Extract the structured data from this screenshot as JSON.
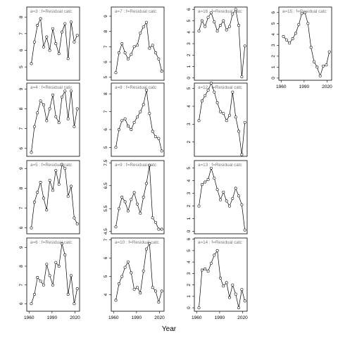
{
  "figure": {
    "xlabel": "Year"
  },
  "chart_data": [
    {
      "type": "line",
      "label": "a=3  :  f=Residual catc",
      "x": [
        1963,
        1967,
        1971,
        1975,
        1979,
        1983,
        1987,
        1991,
        1995,
        1999,
        2003,
        2007,
        2011,
        2015,
        2019,
        2023
      ],
      "values": [
        5.2,
        6.5,
        7.5,
        7.9,
        6.2,
        6.8,
        6.0,
        7.3,
        6.4,
        5.8,
        7.1,
        7.6,
        5.5,
        7.7,
        6.5,
        6.9
      ],
      "xlim": [
        1957,
        2026
      ],
      "ylim": [
        4.2,
        8.6
      ],
      "yticks": [
        5,
        6,
        7,
        8
      ],
      "xticks_shown": false
    },
    {
      "type": "line",
      "label": "a=7  :  f=Residual catc",
      "x": [
        1963,
        1967,
        1971,
        1975,
        1979,
        1983,
        1987,
        1991,
        1995,
        1999,
        2003,
        2007,
        2011,
        2015,
        2019,
        2023
      ],
      "values": [
        5.3,
        6.6,
        7.2,
        6.6,
        6.2,
        6.5,
        7.0,
        7.1,
        7.9,
        8.3,
        8.6,
        6.9,
        7.1,
        6.6,
        6.2,
        5.4
      ],
      "xlim": [
        1957,
        2026
      ],
      "ylim": [
        4.8,
        9.6
      ],
      "yticks": [
        5,
        6,
        7,
        8,
        9
      ],
      "xticks_shown": false
    },
    {
      "type": "line",
      "label": "a=16  :  f=Residual catc",
      "x": [
        1963,
        1967,
        1971,
        1975,
        1979,
        1983,
        1987,
        1991,
        1995,
        1999,
        2003,
        2007,
        2011,
        2015,
        2019,
        2023
      ],
      "values": [
        4.1,
        5.0,
        4.5,
        5.3,
        5.7,
        4.9,
        4.1,
        4.6,
        5.0,
        4.2,
        4.5,
        5.6,
        6.0,
        4.6,
        0.1,
        2.8
      ],
      "xlim": [
        1957,
        2026
      ],
      "ylim": [
        -0.2,
        6.2
      ],
      "yticks": [
        0,
        1,
        2,
        3,
        4,
        5,
        6
      ],
      "xticks_shown": false
    },
    {
      "type": "line",
      "label": "a=15  :  f=Residual catc",
      "x": [
        1963,
        1967,
        1971,
        1975,
        1979,
        1983,
        1987,
        1991,
        1995,
        1999,
        2003,
        2007,
        2011,
        2015,
        2019,
        2023
      ],
      "values": [
        3.8,
        3.5,
        3.2,
        3.6,
        4.1,
        4.9,
        5.9,
        6.0,
        5.0,
        2.8,
        1.5,
        1.0,
        0.2,
        1.1,
        1.2,
        2.4
      ],
      "xlim": [
        1957,
        2026
      ],
      "ylim": [
        -0.2,
        6.5
      ],
      "yticks": [
        0,
        1,
        2,
        3,
        4,
        5,
        6
      ],
      "xticks": [
        1960,
        1990,
        2020
      ],
      "xticks_shown": true
    },
    {
      "type": "line",
      "label": "a=4  :  f=Residual catc",
      "x": [
        1963,
        1967,
        1971,
        1975,
        1979,
        1983,
        1987,
        1991,
        1995,
        1999,
        2003,
        2007,
        2011,
        2015,
        2019,
        2023
      ],
      "values": [
        5.8,
        7.1,
        7.8,
        8.4,
        8.2,
        7.4,
        8.0,
        8.7,
        7.6,
        7.3,
        8.6,
        8.9,
        7.5,
        8.9,
        7.1,
        8.0
      ],
      "xlim": [
        1957,
        2026
      ],
      "ylim": [
        5.6,
        9.3
      ],
      "yticks": [
        6.0,
        7.0,
        8.0,
        9.0
      ],
      "xticks_shown": false
    },
    {
      "type": "line",
      "label": "a=8  :  f=Residual catc",
      "x": [
        1963,
        1967,
        1971,
        1975,
        1979,
        1983,
        1987,
        1991,
        1995,
        1999,
        2003,
        2007,
        2011,
        2015,
        2019,
        2023
      ],
      "values": [
        5.0,
        6.0,
        6.5,
        6.6,
        6.2,
        6.0,
        6.4,
        6.7,
        7.0,
        7.4,
        8.2,
        6.9,
        5.9,
        5.6,
        5.5,
        4.8
      ],
      "xlim": [
        1957,
        2026
      ],
      "ylim": [
        4.5,
        8.6
      ],
      "yticks": [
        5,
        6,
        7,
        8
      ],
      "xticks_shown": false
    },
    {
      "type": "line",
      "label": "a=12  :  f=Residual catc",
      "x": [
        1963,
        1967,
        1971,
        1975,
        1979,
        1983,
        1987,
        1991,
        1995,
        1999,
        2003,
        2007,
        2011,
        2015,
        2019,
        2023
      ],
      "values": [
        3.2,
        4.3,
        4.6,
        4.9,
        5.3,
        4.8,
        4.2,
        3.7,
        3.6,
        3.2,
        3.5,
        4.8,
        3.4,
        2.6,
        1.3,
        3.1
      ],
      "xlim": [
        1957,
        2026
      ],
      "ylim": [
        1.2,
        5.3
      ],
      "yticks": [
        2,
        3,
        4,
        5
      ],
      "xticks_shown": false
    },
    {
      "type": "line",
      "label": "a=5  :  f=Residual catc",
      "x": [
        1963,
        1967,
        1971,
        1975,
        1979,
        1983,
        1987,
        1991,
        1995,
        1999,
        2003,
        2007,
        2011,
        2015,
        2019,
        2023
      ],
      "values": [
        6.0,
        7.3,
        7.8,
        8.3,
        7.5,
        6.9,
        8.4,
        7.9,
        8.9,
        8.2,
        9.2,
        9.0,
        7.6,
        8.1,
        6.5,
        6.2
      ],
      "xlim": [
        1957,
        2026
      ],
      "ylim": [
        5.7,
        9.4
      ],
      "yticks": [
        6.0,
        7.0,
        8.0,
        9.0
      ],
      "xticks_shown": false
    },
    {
      "type": "line",
      "label": "a=9  :  f=Residual catc",
      "x": [
        1963,
        1967,
        1971,
        1975,
        1979,
        1983,
        1987,
        1991,
        1995,
        1999,
        2003,
        2007,
        2011,
        2015,
        2019,
        2023
      ],
      "values": [
        4.7,
        5.5,
        6.0,
        5.8,
        5.4,
        5.9,
        6.2,
        5.7,
        5.3,
        6.0,
        6.6,
        7.4,
        5.1,
        4.9,
        4.6,
        4.6
      ],
      "xlim": [
        1957,
        2026
      ],
      "ylim": [
        4.4,
        7.6
      ],
      "yticks": [
        4.5,
        5.5,
        6.5,
        7.5
      ],
      "xticks_shown": false
    },
    {
      "type": "line",
      "label": "a=13  :  f=Residual catc",
      "x": [
        1963,
        1967,
        1971,
        1975,
        1979,
        1983,
        1987,
        1991,
        1995,
        1999,
        2003,
        2007,
        2011,
        2015,
        2019,
        2023
      ],
      "values": [
        2.0,
        3.7,
        3.9,
        4.1,
        5.0,
        4.2,
        3.3,
        2.5,
        3.1,
        2.4,
        2.0,
        2.6,
        3.4,
        2.8,
        2.1,
        0.1
      ],
      "xlim": [
        1957,
        2026
      ],
      "ylim": [
        -0.2,
        5.6
      ],
      "yticks": [
        0,
        1,
        2,
        3,
        4,
        5
      ],
      "xticks_shown": false
    },
    {
      "type": "line",
      "label": "a=6  :  f=Residual catc",
      "x": [
        1963,
        1967,
        1971,
        1975,
        1979,
        1983,
        1987,
        1991,
        1995,
        1999,
        2003,
        2007,
        2011,
        2015,
        2019,
        2023
      ],
      "values": [
        6.0,
        6.5,
        7.4,
        7.2,
        7.0,
        8.1,
        7.5,
        7.0,
        8.2,
        8.0,
        9.2,
        8.6,
        6.5,
        7.5,
        6.0,
        6.8
      ],
      "xlim": [
        1957,
        2026
      ],
      "ylim": [
        5.6,
        9.5
      ],
      "yticks": [
        6,
        7,
        8,
        9
      ],
      "xticks": [
        1960,
        1990,
        2020
      ],
      "xticks_shown": true
    },
    {
      "type": "line",
      "label": "a=10  :  f=Residual catc",
      "x": [
        1963,
        1967,
        1971,
        1975,
        1979,
        1983,
        1987,
        1991,
        1995,
        1999,
        2003,
        2007,
        2011,
        2015,
        2019,
        2023
      ],
      "values": [
        3.7,
        4.6,
        5.0,
        5.5,
        5.8,
        5.2,
        4.3,
        4.4,
        4.1,
        5.3,
        6.5,
        6.8,
        4.4,
        4.2,
        3.6,
        4.2
      ],
      "xlim": [
        1957,
        2026
      ],
      "ylim": [
        3.1,
        7.1
      ],
      "yticks": [
        4,
        5,
        6,
        7
      ],
      "xticks": [
        1960,
        1990,
        2020
      ],
      "xticks_shown": true
    },
    {
      "type": "line",
      "label": "a=14  :  f=Residual catc",
      "x": [
        1963,
        1967,
        1971,
        1975,
        1979,
        1983,
        1987,
        1991,
        1995,
        1999,
        2003,
        2007,
        2011,
        2015,
        2019,
        2023
      ],
      "values": [
        0.0,
        3.3,
        3.4,
        3.2,
        3.9,
        4.6,
        5.0,
        2.6,
        1.9,
        2.2,
        0.9,
        2.0,
        1.2,
        0.0,
        1.6,
        0.6
      ],
      "xlim": [
        1957,
        2026
      ],
      "ylim": [
        -0.3,
        6.1
      ],
      "yticks": [
        0,
        1,
        2,
        3,
        4,
        5,
        6
      ],
      "xticks": [
        1960,
        1990,
        2020
      ],
      "xticks_shown": true
    }
  ]
}
